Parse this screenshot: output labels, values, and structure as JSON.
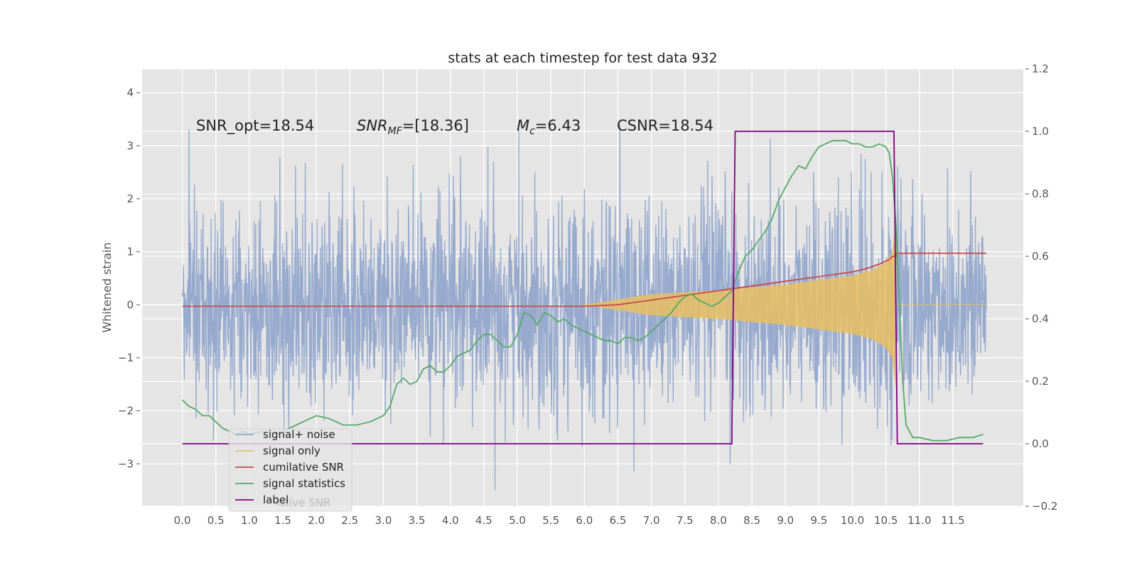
{
  "chart_data": {
    "type": "line",
    "title": "stats at each timestep for test data 932",
    "ylabel": "Whitened strain",
    "xlabel": "",
    "xlim": [
      -0.6,
      12.55
    ],
    "ylim": [
      -3.8,
      4.45
    ],
    "y2lim": [
      -0.2,
      1.2
    ],
    "x_ticks": [
      "0.0",
      "0.5",
      "1.0",
      "1.5",
      "2.0",
      "2.5",
      "3.0",
      "3.5",
      "4.0",
      "4.5",
      "5.0",
      "5.5",
      "6.0",
      "6.5",
      "7.0",
      "7.5",
      "8.0",
      "8.5",
      "9.0",
      "9.5",
      "10.0",
      "10.5",
      "11.0",
      "11.5"
    ],
    "y_ticks": [
      "4",
      "3",
      "2",
      "1",
      "0",
      "−1",
      "−2",
      "−3"
    ],
    "y2_ticks": [
      "1.2",
      "1.0",
      "0.8",
      "0.6",
      "0.4",
      "0.2",
      "0.0",
      "−0.2"
    ],
    "grid": true,
    "legend_position": "lower-left",
    "annotations": {
      "snr_opt": "SNR_opt=18.54",
      "snr_mf_main": "SNR",
      "snr_mf_sub": "MF",
      "snr_mf_value": "=[18.36]",
      "mc_main": "M",
      "mc_sub": "c",
      "mc_value": "=6.43",
      "csnr": "CSNR=18.54"
    },
    "series": [
      {
        "name": "signal+ noise",
        "color": "#92a6cc",
        "axis": "left",
        "description_values": {
          "x_range": [
            0.0,
            12.0
          ],
          "noise_std": 1.0
        }
      },
      {
        "name": "signal only",
        "color": "#e8c060",
        "axis": "left",
        "envelope": {
          "x": [
            6.0,
            7.0,
            8.0,
            9.0,
            10.0,
            10.3,
            10.5,
            10.6,
            10.65
          ],
          "amp": [
            0.0,
            0.2,
            0.27,
            0.38,
            0.55,
            0.65,
            0.8,
            1.0,
            1.6
          ]
        }
      },
      {
        "name": "cumilative SNR",
        "color": "#c84848",
        "axis": "right",
        "x": [
          0.0,
          6.0,
          6.5,
          7.0,
          7.5,
          8.0,
          8.5,
          9.0,
          9.5,
          10.0,
          10.2,
          10.4,
          10.55,
          10.6,
          10.65,
          10.66,
          12.0
        ],
        "values": [
          0.44,
          0.44,
          0.445,
          0.46,
          0.475,
          0.49,
          0.505,
          0.52,
          0.535,
          0.55,
          0.56,
          0.575,
          0.59,
          0.6,
          0.6,
          0.61,
          0.61
        ]
      },
      {
        "name": "signal statistics",
        "color": "#55a868",
        "axis": "right",
        "x": [
          0.0,
          0.1,
          0.2,
          0.3,
          0.4,
          0.5,
          0.6,
          0.7,
          0.8,
          0.9,
          1.0,
          1.2,
          1.4,
          1.6,
          1.8,
          2.0,
          2.2,
          2.4,
          2.6,
          2.8,
          3.0,
          3.1,
          3.2,
          3.3,
          3.4,
          3.5,
          3.6,
          3.7,
          3.8,
          3.9,
          4.0,
          4.1,
          4.2,
          4.3,
          4.4,
          4.5,
          4.6,
          4.7,
          4.8,
          4.9,
          5.0,
          5.1,
          5.2,
          5.3,
          5.4,
          5.5,
          5.6,
          5.7,
          5.8,
          5.9,
          6.0,
          6.1,
          6.2,
          6.3,
          6.4,
          6.5,
          6.6,
          6.7,
          6.8,
          6.9,
          7.0,
          7.1,
          7.2,
          7.3,
          7.4,
          7.5,
          7.6,
          7.7,
          7.8,
          7.9,
          8.0,
          8.1,
          8.2,
          8.3,
          8.4,
          8.5,
          8.6,
          8.7,
          8.8,
          8.9,
          9.0,
          9.1,
          9.2,
          9.3,
          9.4,
          9.5,
          9.6,
          9.7,
          9.8,
          9.9,
          10.0,
          10.1,
          10.2,
          10.3,
          10.4,
          10.5,
          10.55,
          10.6,
          10.65,
          10.7,
          10.75,
          10.8,
          10.9,
          11.0,
          11.2,
          11.4,
          11.6,
          11.8,
          11.95
        ],
        "values": [
          0.14,
          0.12,
          0.11,
          0.09,
          0.09,
          0.07,
          0.05,
          0.04,
          0.03,
          0.04,
          0.03,
          0.04,
          0.03,
          0.05,
          0.07,
          0.09,
          0.08,
          0.06,
          0.06,
          0.07,
          0.09,
          0.12,
          0.19,
          0.21,
          0.19,
          0.2,
          0.24,
          0.25,
          0.23,
          0.23,
          0.25,
          0.28,
          0.29,
          0.3,
          0.33,
          0.35,
          0.35,
          0.33,
          0.31,
          0.31,
          0.35,
          0.42,
          0.41,
          0.38,
          0.42,
          0.41,
          0.39,
          0.4,
          0.38,
          0.37,
          0.36,
          0.35,
          0.34,
          0.33,
          0.33,
          0.32,
          0.34,
          0.34,
          0.33,
          0.34,
          0.36,
          0.38,
          0.4,
          0.42,
          0.45,
          0.47,
          0.48,
          0.46,
          0.45,
          0.44,
          0.45,
          0.47,
          0.49,
          0.55,
          0.6,
          0.62,
          0.65,
          0.68,
          0.72,
          0.78,
          0.82,
          0.86,
          0.89,
          0.88,
          0.92,
          0.95,
          0.96,
          0.97,
          0.97,
          0.97,
          0.96,
          0.96,
          0.95,
          0.95,
          0.96,
          0.95,
          0.93,
          0.85,
          0.7,
          0.45,
          0.2,
          0.06,
          0.02,
          0.02,
          0.01,
          0.01,
          0.02,
          0.02,
          0.03
        ],
        "render_x_max": 11.95
      },
      {
        "name": "label",
        "color": "#800080",
        "axis": "right",
        "x": [
          0.0,
          8.2,
          8.25,
          10.62,
          10.67,
          11.95
        ],
        "values": [
          0.0,
          0.0,
          1.0,
          1.0,
          0.0,
          0.0
        ]
      }
    ],
    "legend_hidden_text": "lative SNR"
  }
}
